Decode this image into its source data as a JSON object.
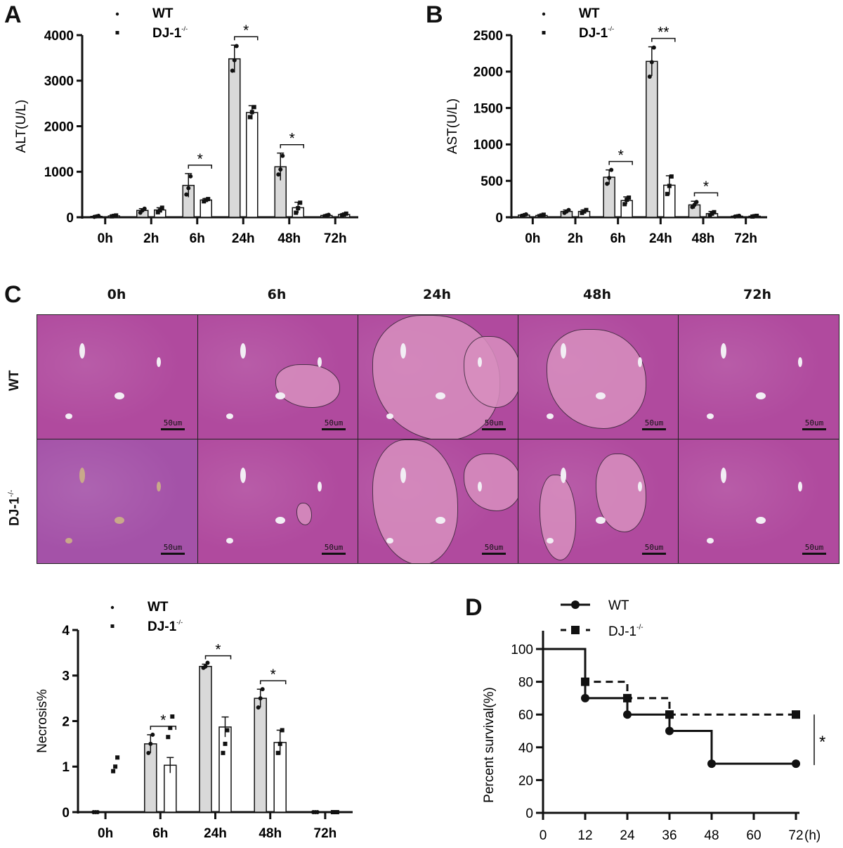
{
  "panels": {
    "A": "A",
    "B": "B",
    "C": "C",
    "D": "D"
  },
  "legend": {
    "wt": "WT",
    "ko_base": "DJ-1",
    "ko_sup": "-/-"
  },
  "histology": {
    "columns": [
      "0h",
      "6h",
      "24h",
      "48h",
      "72h"
    ],
    "rows": [
      "WT",
      "DJ-1"
    ],
    "row_sup": "-/-",
    "scale_label": "50um",
    "colors": {
      "tissue": "#b04a9e",
      "necrosis": "#d88fbf",
      "vessel": "#f2eef4",
      "ko0h_vessel": "#c9a98a"
    }
  },
  "chart_data": [
    {
      "id": "A",
      "type": "bar",
      "title": "",
      "xlabel": "",
      "ylabel": "ALT(U/L)",
      "categories": [
        "0h",
        "2h",
        "6h",
        "24h",
        "48h",
        "72h"
      ],
      "ylim": [
        0,
        4000
      ],
      "yticks": [
        0,
        1000,
        2000,
        3000,
        4000
      ],
      "series": [
        {
          "name": "WT",
          "values": [
            20,
            150,
            700,
            3480,
            1110,
            40
          ],
          "errors": [
            10,
            40,
            260,
            300,
            300,
            15
          ],
          "color": "#d9d9d9"
        },
        {
          "name": "DJ-1-/-",
          "values": [
            30,
            160,
            380,
            2300,
            210,
            60
          ],
          "errors": [
            10,
            50,
            30,
            150,
            120,
            20
          ],
          "color": "#ffffff"
        }
      ],
      "points": [
        [
          [
            10,
            20,
            30
          ],
          [
            100,
            150,
            190
          ],
          [
            500,
            640,
            900
          ],
          [
            3220,
            3450,
            3760
          ],
          [
            940,
            1050,
            1350
          ],
          [
            25,
            40,
            55
          ]
        ],
        [
          [
            20,
            30,
            40
          ],
          [
            110,
            150,
            210
          ],
          [
            350,
            380,
            400
          ],
          [
            2200,
            2310,
            2420
          ],
          [
            100,
            200,
            320
          ],
          [
            40,
            60,
            80
          ]
        ]
      ],
      "significance": [
        {
          "category": "6h",
          "label": "*"
        },
        {
          "category": "24h",
          "label": "*"
        },
        {
          "category": "48h",
          "label": "*"
        }
      ]
    },
    {
      "id": "B",
      "type": "bar",
      "title": "",
      "xlabel": "",
      "ylabel": "AST(U/L)",
      "categories": [
        "0h",
        "2h",
        "6h",
        "24h",
        "48h",
        "72h"
      ],
      "ylim": [
        0,
        2500
      ],
      "yticks": [
        0,
        500,
        1000,
        1500,
        2000,
        2500
      ],
      "series": [
        {
          "name": "WT",
          "values": [
            30,
            80,
            550,
            2140,
            170,
            15
          ],
          "errors": [
            10,
            20,
            100,
            200,
            50,
            8
          ],
          "color": "#d9d9d9"
        },
        {
          "name": "DJ-1-/-",
          "values": [
            25,
            80,
            230,
            440,
            50,
            15
          ],
          "errors": [
            10,
            20,
            50,
            130,
            30,
            8
          ],
          "color": "#ffffff"
        }
      ],
      "points": [
        [
          [
            20,
            30,
            40
          ],
          [
            60,
            80,
            100
          ],
          [
            460,
            540,
            650
          ],
          [
            1930,
            2130,
            2330
          ],
          [
            140,
            170,
            210
          ],
          [
            10,
            15,
            20
          ]
        ],
        [
          [
            15,
            25,
            35
          ],
          [
            60,
            80,
            100
          ],
          [
            180,
            240,
            270
          ],
          [
            320,
            430,
            560
          ],
          [
            30,
            50,
            70
          ],
          [
            10,
            15,
            20
          ]
        ]
      ],
      "significance": [
        {
          "category": "6h",
          "label": "*"
        },
        {
          "category": "24h",
          "label": "**"
        },
        {
          "category": "48h",
          "label": "*"
        }
      ]
    },
    {
      "id": "C-quant",
      "type": "bar",
      "title": "",
      "xlabel": "",
      "ylabel": "Necrosis%",
      "categories": [
        "0h",
        "6h",
        "24h",
        "48h",
        "72h"
      ],
      "ylim": [
        0,
        4
      ],
      "yticks": [
        0,
        1,
        2,
        3,
        4
      ],
      "series": [
        {
          "name": "WT",
          "values": [
            0,
            1.5,
            3.2,
            2.5,
            0
          ],
          "errors": [
            0,
            0.2,
            0.05,
            0.2,
            0
          ],
          "color": "#d9d9d9"
        },
        {
          "name": "DJ-1-/-",
          "values": [
            0,
            1.03,
            1.87,
            1.53,
            0
          ],
          "errors": [
            0,
            0.17,
            0.22,
            0.27,
            0
          ],
          "color": "#ffffff"
        }
      ],
      "points": [
        [
          [
            0,
            0,
            0
          ],
          [
            1.3,
            1.5,
            1.7
          ],
          [
            3.17,
            3.2,
            3.28
          ],
          [
            2.3,
            2.5,
            2.7
          ],
          [
            0,
            0,
            0
          ]
        ],
        [
          [
            0.9,
            1.0,
            1.2
          ],
          [
            1.65,
            1.85,
            2.1
          ],
          [
            1.3,
            1.5,
            1.8
          ],
          [
            1.3,
            1.5,
            1.8
          ],
          [
            0,
            0,
            0
          ]
        ]
      ],
      "significance": [
        {
          "category": "6h",
          "label": "*"
        },
        {
          "category": "24h",
          "label": "*"
        },
        {
          "category": "48h",
          "label": "*"
        }
      ]
    },
    {
      "id": "D",
      "type": "line",
      "subtype": "kaplan-meier",
      "title": "",
      "xlabel": "(h)",
      "ylabel": "Percent survival(%)",
      "xlim": [
        0,
        72
      ],
      "ylim": [
        0,
        100
      ],
      "xticks": [
        0,
        12,
        24,
        36,
        48,
        60,
        72
      ],
      "yticks": [
        0,
        20,
        40,
        60,
        80,
        100
      ],
      "series": [
        {
          "name": "WT",
          "style": "solid",
          "marker": "circle",
          "x": [
            0,
            12,
            24,
            36,
            48,
            72
          ],
          "y": [
            100,
            70,
            60,
            50,
            30,
            30
          ],
          "markers_x": [
            12,
            24,
            36,
            48,
            72
          ],
          "markers_y": [
            70,
            60,
            50,
            30,
            30
          ]
        },
        {
          "name": "DJ-1-/-",
          "style": "dashed",
          "marker": "square",
          "x": [
            0,
            12,
            24,
            36,
            72
          ],
          "y": [
            100,
            80,
            70,
            60,
            60
          ],
          "markers_x": [
            12,
            24,
            36,
            72
          ],
          "markers_y": [
            80,
            70,
            60,
            60
          ]
        }
      ],
      "significance": [
        {
          "label": "*"
        }
      ]
    }
  ]
}
